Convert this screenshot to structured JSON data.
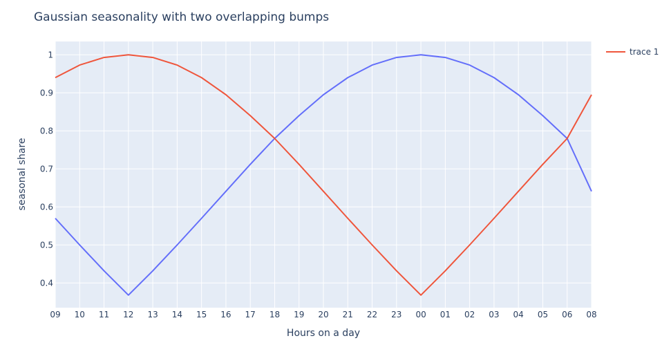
{
  "chart_data": {
    "type": "line",
    "title": "Gaussian seasonality with two overlapping bumps",
    "xlabel": "Hours on a day",
    "ylabel": "seasonal share",
    "categories": [
      "09",
      "10",
      "11",
      "12",
      "13",
      "14",
      "15",
      "16",
      "17",
      "18",
      "19",
      "20",
      "21",
      "22",
      "23",
      "00",
      "01",
      "02",
      "03",
      "04",
      "05",
      "06",
      "08"
    ],
    "yticks": [
      0.4,
      0.5,
      0.6,
      0.7,
      0.8,
      0.9,
      1
    ],
    "ytick_labels": [
      "0.4",
      "0.5",
      "0.6",
      "0.7",
      "0.8",
      "0.9",
      "1"
    ],
    "ylim": [
      0.335,
      1.035
    ],
    "grid": true,
    "legend_position": "top-right",
    "series": [
      {
        "name": "",
        "color": "#636efa",
        "values": [
          0.57,
          0.5,
          0.432,
          0.368,
          0.432,
          0.5,
          0.57,
          0.641,
          0.712,
          0.78,
          0.84,
          0.895,
          0.94,
          0.973,
          0.993,
          1.0,
          0.993,
          0.973,
          0.94,
          0.895,
          0.84,
          0.78,
          0.641
        ]
      },
      {
        "name": "trace 1",
        "color": "#ef553b",
        "values": [
          0.94,
          0.973,
          0.993,
          1.0,
          0.993,
          0.973,
          0.94,
          0.895,
          0.84,
          0.78,
          0.712,
          0.641,
          0.57,
          0.5,
          0.432,
          0.368,
          0.432,
          0.5,
          0.57,
          0.641,
          0.712,
          0.78,
          0.895
        ]
      }
    ]
  }
}
